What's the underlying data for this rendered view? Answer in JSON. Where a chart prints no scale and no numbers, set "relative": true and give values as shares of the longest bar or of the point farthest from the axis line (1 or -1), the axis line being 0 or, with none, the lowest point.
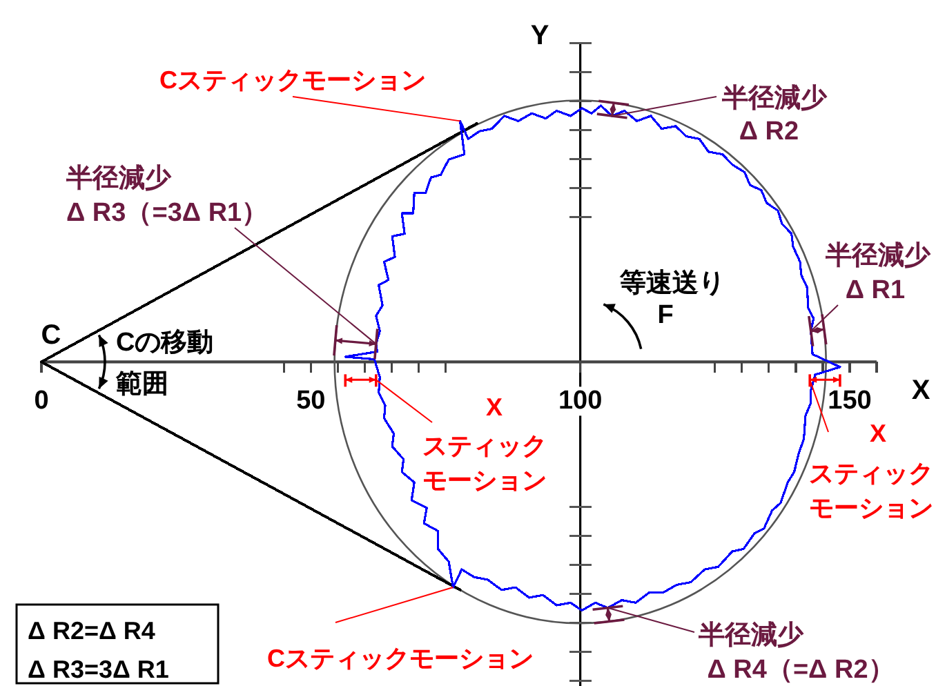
{
  "chart_data": {
    "type": "line",
    "relative": true,
    "xlabel": "X",
    "ylabel": "Y",
    "xlim": [
      0,
      155
    ],
    "xticks": [
      0,
      {
        "value": 45,
        "label": null
      },
      50,
      {
        "value": 55,
        "label": null
      },
      {
        "value": 60,
        "label": null
      },
      {
        "value": 65,
        "label": null
      },
      {
        "value": 70,
        "label": null
      },
      {
        "value": 75,
        "label": null
      },
      100,
      {
        "value": 125,
        "label": null
      },
      {
        "value": 130,
        "label": null
      },
      {
        "value": 135,
        "label": null
      },
      {
        "value": 140,
        "label": null
      },
      {
        "value": 145,
        "label": null
      },
      150,
      {
        "value": 155,
        "label": null
      }
    ],
    "series": [
      {
        "color": "#0000ff",
        "x": [
          148.2,
          143.1,
          142.8,
          143.3,
          142.3,
          142.1,
          141.0,
          140.8,
          139.5,
          139.2,
          137.4,
          136.7,
          134.6,
          133.6,
          131.5,
          130.5,
          128.2,
          126.4,
          123.8,
          122.1,
          119.7,
          117.7,
          115.1,
          113.1,
          110.5,
          108.2,
          105.9,
          103.8,
          102.1,
          100.3,
          98.2,
          95.6,
          93.6,
          91.0,
          88.5,
          85.9,
          83.6,
          81.3,
          79.2,
          77.7,
          78.5,
          75.6,
          74.1,
          72.3,
          71.3,
          69.2,
          69.0,
          66.9,
          67.4,
          65.1,
          65.6,
          63.6,
          64.4,
          62.6,
          63.3,
          62.1,
          62.8,
          62.1,
          62.3,
          56.4,
          61.8
        ],
        "values": [
          -0.02,
          0.03,
          0.12,
          0.17,
          0.21,
          0.29,
          0.34,
          0.39,
          0.45,
          0.5,
          0.54,
          0.59,
          0.62,
          0.67,
          0.69,
          0.74,
          0.77,
          0.81,
          0.82,
          0.87,
          0.88,
          0.92,
          0.91,
          0.96,
          0.94,
          0.98,
          0.96,
          1,
          0.97,
          0.99,
          0.96,
          0.98,
          0.95,
          0.97,
          0.94,
          0.96,
          0.91,
          0.9,
          0.87,
          0.94,
          0.81,
          0.79,
          0.73,
          0.72,
          0.66,
          0.66,
          0.58,
          0.58,
          0.5,
          0.49,
          0.41,
          0.39,
          0.32,
          0.3,
          0.22,
          0.18,
          0.12,
          0.07,
          0.04,
          0.02,
          0.01
        ]
      },
      {
        "color": "#0000ff",
        "x": [
          61.8,
          62.8,
          62.6,
          63.8,
          63.6,
          65.4,
          65.1,
          67.2,
          66.9,
          69.2,
          68.7,
          71.5,
          71.0,
          73.6,
          73.6,
          75.6,
          76.4,
          78.0,
          80.3,
          82.8,
          85.4,
          88.0,
          90.5,
          93.1,
          95.6,
          98.2,
          100.3,
          102.8,
          105.1,
          107.7,
          110.3,
          112.8,
          115.4,
          117.9,
          120.5,
          123.1,
          125.6,
          128.2,
          130.3,
          132.3,
          134.1,
          135.6,
          137.2,
          138.5,
          139.7,
          140.5,
          141.5,
          141.8,
          142.8,
          142.8,
          143.6,
          148.2
        ],
        "values": [
          0.01,
          -0.06,
          -0.12,
          -0.17,
          -0.22,
          -0.28,
          -0.33,
          -0.38,
          -0.43,
          -0.47,
          -0.54,
          -0.57,
          -0.63,
          -0.66,
          -0.73,
          -0.78,
          -0.88,
          -0.81,
          -0.84,
          -0.85,
          -0.89,
          -0.88,
          -0.92,
          -0.91,
          -0.95,
          -0.94,
          -0.97,
          -0.94,
          -0.96,
          -0.93,
          -0.94,
          -0.9,
          -0.9,
          -0.87,
          -0.86,
          -0.81,
          -0.8,
          -0.74,
          -0.73,
          -0.67,
          -0.65,
          -0.58,
          -0.55,
          -0.47,
          -0.43,
          -0.36,
          -0.3,
          -0.21,
          -0.16,
          -0.11,
          -0.05,
          -0.02
        ]
      },
      {
        "color": "#000000",
        "x": [
          80.8,
          0,
          77.7
        ],
        "values": [
          0.93,
          0,
          -0.89
        ]
      }
    ],
    "ref_lines": [
      {
        "axis": "x",
        "value": 100
      }
    ],
    "annotations": [
      {
        "text": "Cスティックモーション",
        "x": 77.7,
        "y": 0.94
      },
      {
        "text": "半径減少\nΔ R3（=3Δ R1）",
        "x": 62.1,
        "y": 0.07
      },
      {
        "text": "半径減少\nΔ R2",
        "x": 105.9,
        "y": 0.96
      },
      {
        "text": "半径減少\nΔ R1",
        "x": 142.8,
        "y": 0.12
      },
      {
        "text": "Xスティックモーション",
        "x": 62.1,
        "y": -0.07
      },
      {
        "text": "Xスティックモーション",
        "x": 142.6,
        "y": -0.07
      },
      {
        "text": "Cスティックモーション",
        "x": 76.4,
        "y": -0.88
      },
      {
        "text": "半径減少\nΔ R4（=Δ R2）",
        "x": 105.1,
        "y": -0.96
      },
      {
        "text": "C",
        "x": 0,
        "y": 0
      },
      "Cの移動範囲",
      "等速送り\nF",
      "Δ R2=Δ R4\nΔ R3=3Δ R1"
    ]
  }
}
